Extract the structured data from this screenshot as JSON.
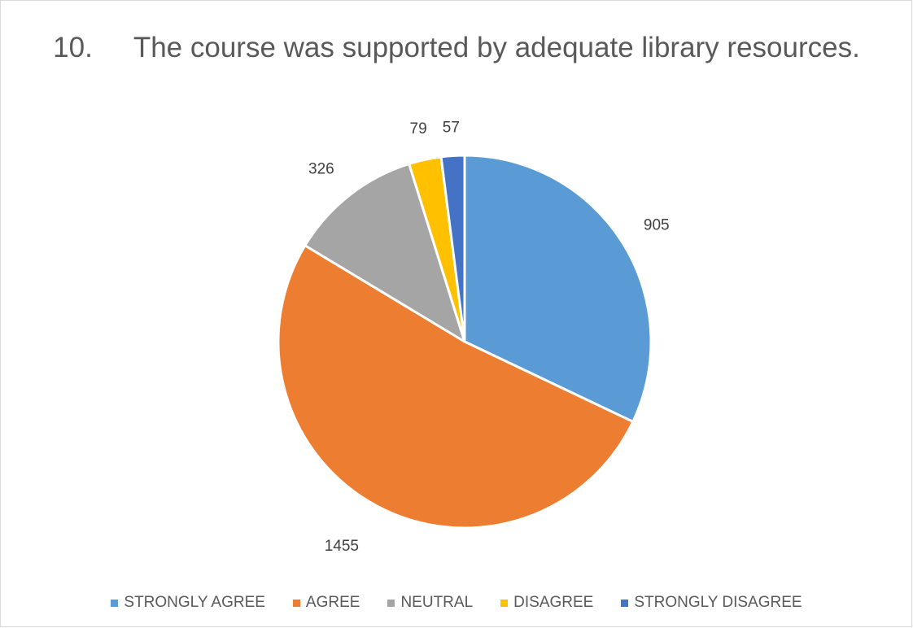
{
  "chart_data": {
    "type": "pie",
    "title_number": "10.",
    "title": "The course was supported by adequate library resources.",
    "categories": [
      "STRONGLY AGREE",
      "AGREE",
      "NEUTRAL",
      "DISAGREE",
      "STRONGLY DISAGREE"
    ],
    "values": [
      905,
      1455,
      326,
      79,
      57
    ],
    "colors": [
      "#5b9bd5",
      "#ed7d31",
      "#a5a5a5",
      "#ffc000",
      "#4472c4"
    ],
    "start_angle_deg": 0,
    "direction": "clockwise",
    "legend_position": "bottom"
  }
}
